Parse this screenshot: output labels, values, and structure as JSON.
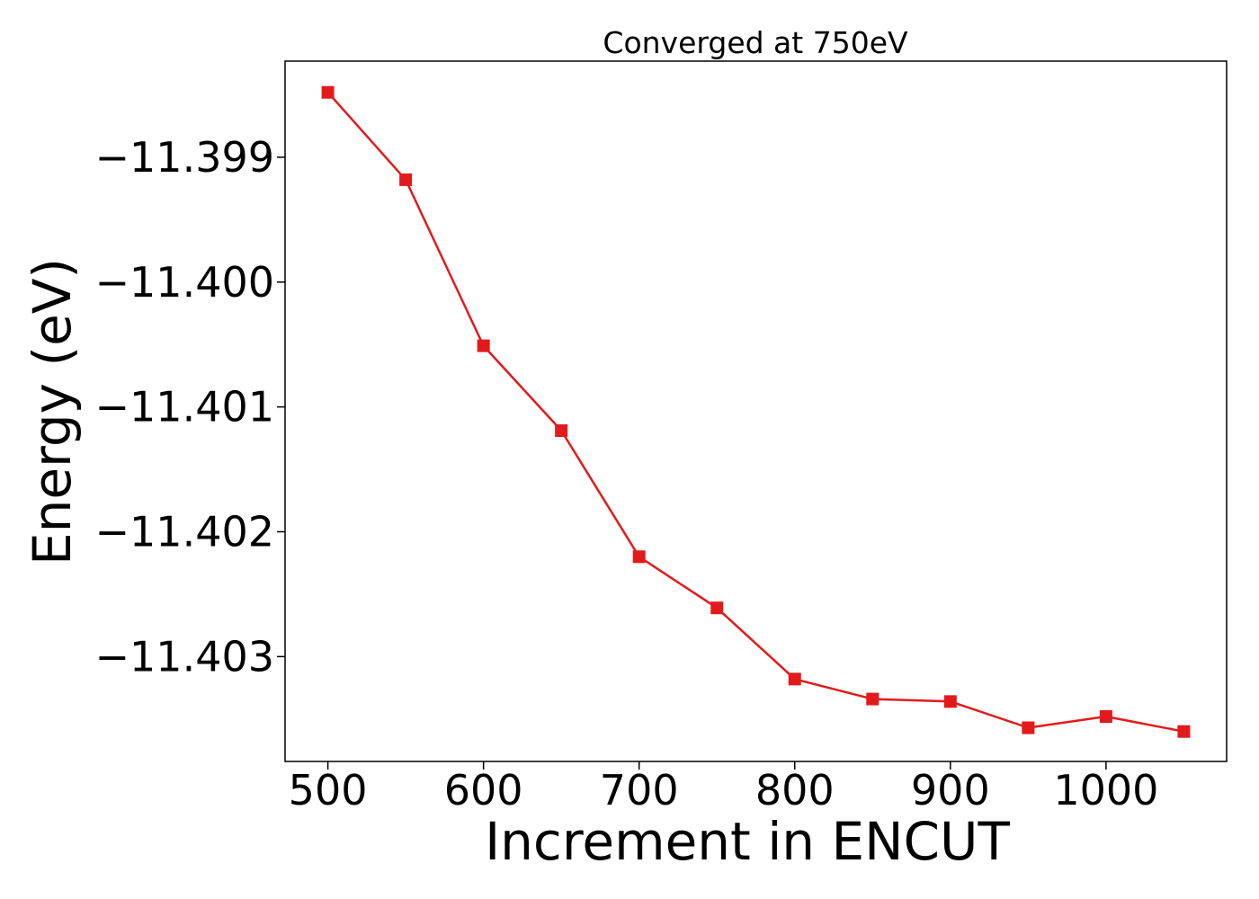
{
  "chart_data": {
    "type": "line",
    "title": "Converged at 750eV",
    "xlabel": "Increment in ENCUT",
    "ylabel": "Energy (eV)",
    "x": [
      500,
      550,
      600,
      650,
      700,
      750,
      800,
      850,
      900,
      950,
      1000,
      1050
    ],
    "series": [
      {
        "values": [
          -11.39848,
          -11.39918,
          -11.40051,
          -11.40119,
          -11.4022,
          -11.40261,
          -11.40318,
          -11.40334,
          -11.40336,
          -11.40357,
          -11.40348,
          -11.4036
        ],
        "color": "#e31a1c",
        "marker": "square"
      }
    ],
    "xlim": [
      472.5,
      1077.5
    ],
    "ylim": [
      -11.40384,
      -11.39823
    ],
    "xticks": [
      500,
      600,
      700,
      800,
      900,
      1000
    ],
    "xtick_labels": [
      "500",
      "600",
      "700",
      "800",
      "900",
      "1000"
    ],
    "yticks": [
      -11.399,
      -11.4,
      -11.401,
      -11.402,
      -11.403
    ],
    "ytick_labels": [
      "−11.399",
      "−11.400",
      "−11.401",
      "−11.402",
      "−11.403"
    ],
    "grid": false,
    "legend": "none"
  }
}
